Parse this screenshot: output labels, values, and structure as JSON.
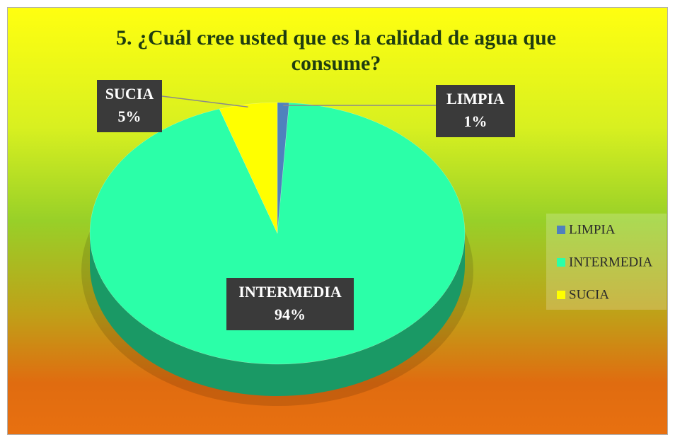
{
  "chart_data": {
    "type": "pie",
    "title": "5. ¿Cuál cree usted que es la calidad de agua que consume?",
    "categories": [
      "LIMPIA",
      "INTERMEDIA",
      "SUCIA"
    ],
    "values": [
      1,
      94,
      5
    ],
    "value_labels": [
      "1%",
      "94%",
      "5%"
    ],
    "colors": [
      "#4f81bd",
      "#2bffa8",
      "#ffff00"
    ],
    "legend": "right"
  }
}
